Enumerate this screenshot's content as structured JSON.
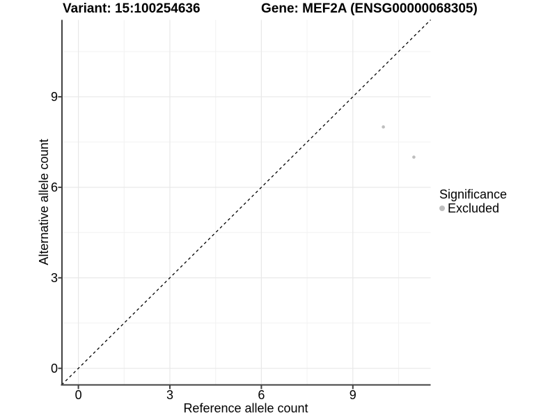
{
  "figure": {
    "title_left": "Variant: 15:100254636",
    "title_right": "Gene: MEF2A (ENSG00000068305)"
  },
  "chart_data": {
    "type": "scatter",
    "title": "Variant: 15:100254636   Gene: MEF2A (ENSG00000068305)",
    "xlabel": "Reference allele count",
    "ylabel": "Alternative allele count",
    "xlim": [
      -0.55,
      11.55
    ],
    "ylim": [
      -0.55,
      11.55
    ],
    "xticks": [
      0,
      3,
      6,
      9
    ],
    "yticks": [
      0,
      3,
      6,
      9
    ],
    "minor_gridlines_x": [
      1.5,
      4.5,
      7.5,
      10.5
    ],
    "minor_gridlines_y": [
      1.5,
      4.5,
      7.5,
      10.5
    ],
    "grid": "on",
    "series": [
      {
        "name": "Excluded",
        "color": "#bebebe",
        "points": [
          [
            10,
            8
          ],
          [
            11,
            7
          ]
        ]
      }
    ],
    "reference_line": {
      "type": "identity",
      "style": "dashed",
      "color": "#000000",
      "from": [
        -0.55,
        -0.55
      ],
      "to": [
        11.55,
        11.55
      ]
    },
    "legend": {
      "title": "Significance",
      "position": "right",
      "entries": [
        {
          "label": "Excluded",
          "color": "#bebebe"
        }
      ]
    }
  },
  "colors": {
    "background": "#ffffff",
    "axis": "#404040",
    "grid_major": "#e8e8e8",
    "grid_minor": "#f2f2f2",
    "point": "#bebebe",
    "text": "#000000"
  }
}
